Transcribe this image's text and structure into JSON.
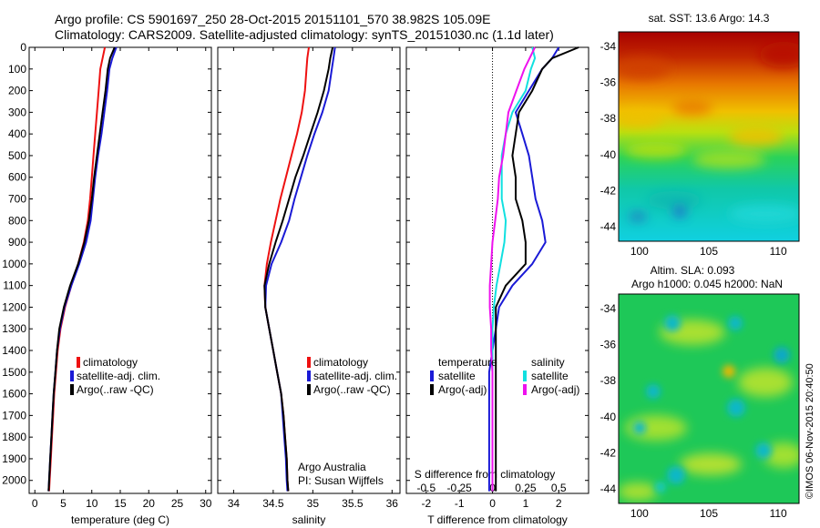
{
  "header": {
    "line1": "Argo profile: CS 5901697_250 28-Oct-2015 20151101_570 38.982S 105.09E",
    "line2": "Climatology: CARS2009. Satellite-adjusted climatology: synTS_20151030.nc (1.1d later)"
  },
  "colors": {
    "climatology": "#ee1111",
    "satellite": "#1a1ad6",
    "argo": "#000000",
    "sal_satellite": "#11e0e0",
    "sal_argo": "#ee11ee"
  },
  "chart_data": [
    {
      "type": "line",
      "name": "temperature",
      "xlabel": "temperature (deg C)",
      "ylabel": "",
      "xlim": [
        -1,
        31
      ],
      "ylim": [
        2060,
        0
      ],
      "xticks": [
        0,
        5,
        10,
        15,
        20,
        25,
        30
      ],
      "yticks": [
        0,
        100,
        200,
        300,
        400,
        500,
        600,
        700,
        800,
        900,
        1000,
        1100,
        1200,
        1300,
        1400,
        1500,
        1600,
        1700,
        1800,
        1900,
        2000
      ],
      "legend": [
        "climatology",
        "satellite-adj. clim.",
        "Argo(..raw -QC)"
      ],
      "legend_position": "lower-right",
      "series": [
        {
          "name": "climatology",
          "color_key": "climatology",
          "x": [
            12.3,
            11.9,
            11.5,
            11.2,
            10.9,
            10.6,
            10.3,
            10.0,
            9.7,
            9.3,
            8.6,
            7.6,
            6.4,
            5.3,
            4.5,
            4.0,
            3.7,
            3.4,
            3.2,
            3.0,
            2.8,
            2.6,
            2.5
          ],
          "y": [
            0,
            50,
            100,
            200,
            300,
            400,
            500,
            600,
            700,
            800,
            900,
            1000,
            1100,
            1200,
            1300,
            1400,
            1500,
            1600,
            1700,
            1800,
            1900,
            2000,
            2050
          ]
        },
        {
          "name": "satellite-adj. clim.",
          "color_key": "satellite",
          "x": [
            14.3,
            13.6,
            13.1,
            12.7,
            12.2,
            11.7,
            11.1,
            10.6,
            10.2,
            9.8,
            9.0,
            7.8,
            6.4,
            5.2,
            4.4,
            3.9,
            3.6,
            3.3,
            3.1,
            2.9,
            2.7,
            2.5,
            2.4
          ],
          "y": [
            0,
            50,
            100,
            200,
            300,
            400,
            500,
            600,
            700,
            800,
            900,
            1000,
            1100,
            1200,
            1300,
            1400,
            1500,
            1600,
            1700,
            1800,
            1900,
            2000,
            2050
          ]
        },
        {
          "name": "Argo(..raw -QC)",
          "color_key": "argo",
          "x": [
            14.0,
            13.2,
            12.8,
            12.4,
            11.9,
            11.4,
            10.9,
            10.4,
            10.0,
            9.5,
            8.7,
            7.6,
            6.2,
            5.1,
            4.3,
            3.9,
            3.6,
            3.3,
            3.1,
            2.9,
            2.7,
            2.5,
            2.4
          ],
          "y": [
            0,
            50,
            100,
            200,
            300,
            400,
            500,
            600,
            700,
            800,
            900,
            1000,
            1100,
            1200,
            1300,
            1400,
            1500,
            1600,
            1700,
            1800,
            1900,
            2000,
            2050
          ]
        }
      ]
    },
    {
      "type": "line",
      "name": "salinity",
      "xlabel": "salinity",
      "ylabel": "",
      "xlim": [
        33.8,
        36.1
      ],
      "ylim": [
        2060,
        0
      ],
      "xticks": [
        34,
        34.5,
        35,
        35.5,
        36
      ],
      "legend": [
        "climatology",
        "satellite-adj. clim.",
        "Argo(..raw -QC)"
      ],
      "legend_position": "lower-right",
      "annotation": [
        "Argo Australia",
        "PI: Susan Wijffels"
      ],
      "series": [
        {
          "name": "climatology",
          "color_key": "climatology",
          "x": [
            34.95,
            34.93,
            34.92,
            34.9,
            34.86,
            34.8,
            34.73,
            34.66,
            34.59,
            34.53,
            34.47,
            34.42,
            34.39,
            34.4,
            34.45,
            34.5,
            34.55,
            34.6,
            34.63,
            34.65,
            34.67,
            34.68,
            34.69
          ],
          "y": [
            0,
            50,
            100,
            200,
            300,
            400,
            500,
            600,
            700,
            800,
            900,
            1000,
            1100,
            1200,
            1300,
            1400,
            1500,
            1600,
            1700,
            1800,
            1900,
            2000,
            2050
          ]
        },
        {
          "name": "satellite-adj. clim.",
          "color_key": "satellite",
          "x": [
            35.28,
            35.26,
            35.24,
            35.2,
            35.12,
            35.02,
            34.93,
            34.85,
            34.77,
            34.7,
            34.6,
            34.48,
            34.41,
            34.4,
            34.45,
            34.5,
            34.55,
            34.6,
            34.62,
            34.64,
            34.66,
            34.67,
            34.68
          ],
          "y": [
            0,
            50,
            100,
            200,
            300,
            400,
            500,
            600,
            700,
            800,
            900,
            1000,
            1100,
            1200,
            1300,
            1400,
            1500,
            1600,
            1700,
            1800,
            1900,
            2000,
            2050
          ]
        },
        {
          "name": "Argo(..raw -QC)",
          "color_key": "argo",
          "x": [
            35.25,
            35.22,
            35.2,
            35.14,
            35.06,
            34.97,
            34.88,
            34.78,
            34.7,
            34.62,
            34.53,
            34.45,
            34.39,
            34.4,
            34.45,
            34.5,
            34.55,
            34.6,
            34.63,
            34.65,
            34.67,
            34.68,
            34.69
          ],
          "y": [
            0,
            50,
            100,
            200,
            300,
            400,
            500,
            600,
            700,
            800,
            900,
            1000,
            1100,
            1200,
            1300,
            1400,
            1500,
            1600,
            1700,
            1800,
            1900,
            2000,
            2050
          ]
        }
      ]
    },
    {
      "type": "line",
      "name": "difference",
      "xlabel": "T difference from climatology",
      "x2label": "S difference from climatology",
      "xlim": [
        -2.6,
        2.9
      ],
      "x2lim": [
        -0.65,
        0.725
      ],
      "ylim": [
        2060,
        0
      ],
      "xticks": [
        -2,
        -1,
        0,
        1,
        2
      ],
      "x2ticks": [
        -0.5,
        -0.25,
        0,
        0.25,
        0.5
      ],
      "legend_headers": [
        "temperature",
        "salinity"
      ],
      "legend": [
        "satellite",
        "Argo(-adj)",
        "satellite",
        "Argo(-adj)"
      ],
      "legend_position": "lower-center",
      "series": [
        {
          "name": "temperature satellite",
          "color_key": "satellite",
          "x": [
            2.0,
            1.8,
            1.5,
            1.1,
            0.7,
            0.9,
            1.1,
            1.2,
            1.3,
            1.5,
            1.6,
            1.2,
            0.6,
            0.2,
            0.1,
            0.0,
            -0.1,
            -0.1,
            -0.1,
            -0.1,
            -0.1,
            -0.1,
            -0.1
          ],
          "y": [
            0,
            50,
            100,
            200,
            300,
            400,
            500,
            600,
            700,
            800,
            900,
            1000,
            1100,
            1200,
            1300,
            1400,
            1500,
            1600,
            1700,
            1800,
            1900,
            2000,
            2050
          ]
        },
        {
          "name": "temperature Argo(-adj)",
          "color_key": "argo",
          "x": [
            2.6,
            1.8,
            1.5,
            1.2,
            0.8,
            0.7,
            0.6,
            0.7,
            0.7,
            0.9,
            1.0,
            1.0,
            0.4,
            0.1,
            0.1,
            0.1,
            0.1,
            0.1,
            0.1,
            0.1,
            0.1,
            0.1,
            0.1
          ],
          "y": [
            0,
            50,
            100,
            200,
            300,
            400,
            500,
            600,
            700,
            800,
            900,
            1000,
            1100,
            1200,
            1300,
            1400,
            1500,
            1600,
            1700,
            1800,
            1900,
            2000,
            2050
          ]
        },
        {
          "name": "salinity satellite",
          "color_key": "sal_satellite",
          "x2": [
            0.3,
            0.32,
            0.29,
            0.25,
            0.15,
            0.1,
            0.07,
            0.07,
            0.07,
            0.1,
            0.09,
            0.06,
            0.03,
            0.01,
            0.0,
            0.0,
            0.0,
            0.0,
            0.0,
            0.0,
            0.0,
            0.0,
            0.0
          ],
          "y": [
            0,
            50,
            100,
            200,
            300,
            400,
            500,
            600,
            700,
            800,
            900,
            1000,
            1100,
            1200,
            1300,
            1400,
            1500,
            1600,
            1700,
            1800,
            1900,
            2000,
            2050
          ]
        },
        {
          "name": "salinity Argo(-adj)",
          "color_key": "sal_argo",
          "x2": [
            0.32,
            0.28,
            0.24,
            0.18,
            0.12,
            0.1,
            0.08,
            0.05,
            0.04,
            0.02,
            0.0,
            -0.01,
            -0.02,
            -0.02,
            -0.01,
            -0.01,
            0.0,
            0.0,
            0.0,
            0.0,
            0.0,
            0.0,
            0.0
          ],
          "y": [
            0,
            50,
            100,
            200,
            300,
            400,
            500,
            600,
            700,
            800,
            900,
            1000,
            1100,
            1200,
            1300,
            1400,
            1500,
            1600,
            1700,
            1800,
            1900,
            2000,
            2050
          ]
        }
      ]
    },
    {
      "type": "heatmap",
      "name": "sst_map",
      "title": "sat. SST: 13.6  Argo: 14.3",
      "xlim": [
        98.5,
        111.5
      ],
      "ylim": [
        -44.8,
        -33.2
      ],
      "xticks": [
        100,
        105,
        110
      ],
      "yticks": [
        -34,
        -36,
        -38,
        -40,
        -42,
        -44
      ],
      "colormap": "jet"
    },
    {
      "type": "heatmap",
      "name": "sla_map",
      "title_lines": [
        "Altim. SLA: 0.093",
        "Argo h1000: 0.045 h2000: NaN"
      ],
      "xlim": [
        98.5,
        111.5
      ],
      "ylim": [
        -44.8,
        -33.2
      ],
      "xticks": [
        100,
        105,
        110
      ],
      "yticks": [
        -34,
        -36,
        -38,
        -40,
        -42,
        -44
      ],
      "colormap": "jet"
    }
  ],
  "footer": {
    "stamp": "©IMOS 06-Nov-2015 20:40:50"
  }
}
